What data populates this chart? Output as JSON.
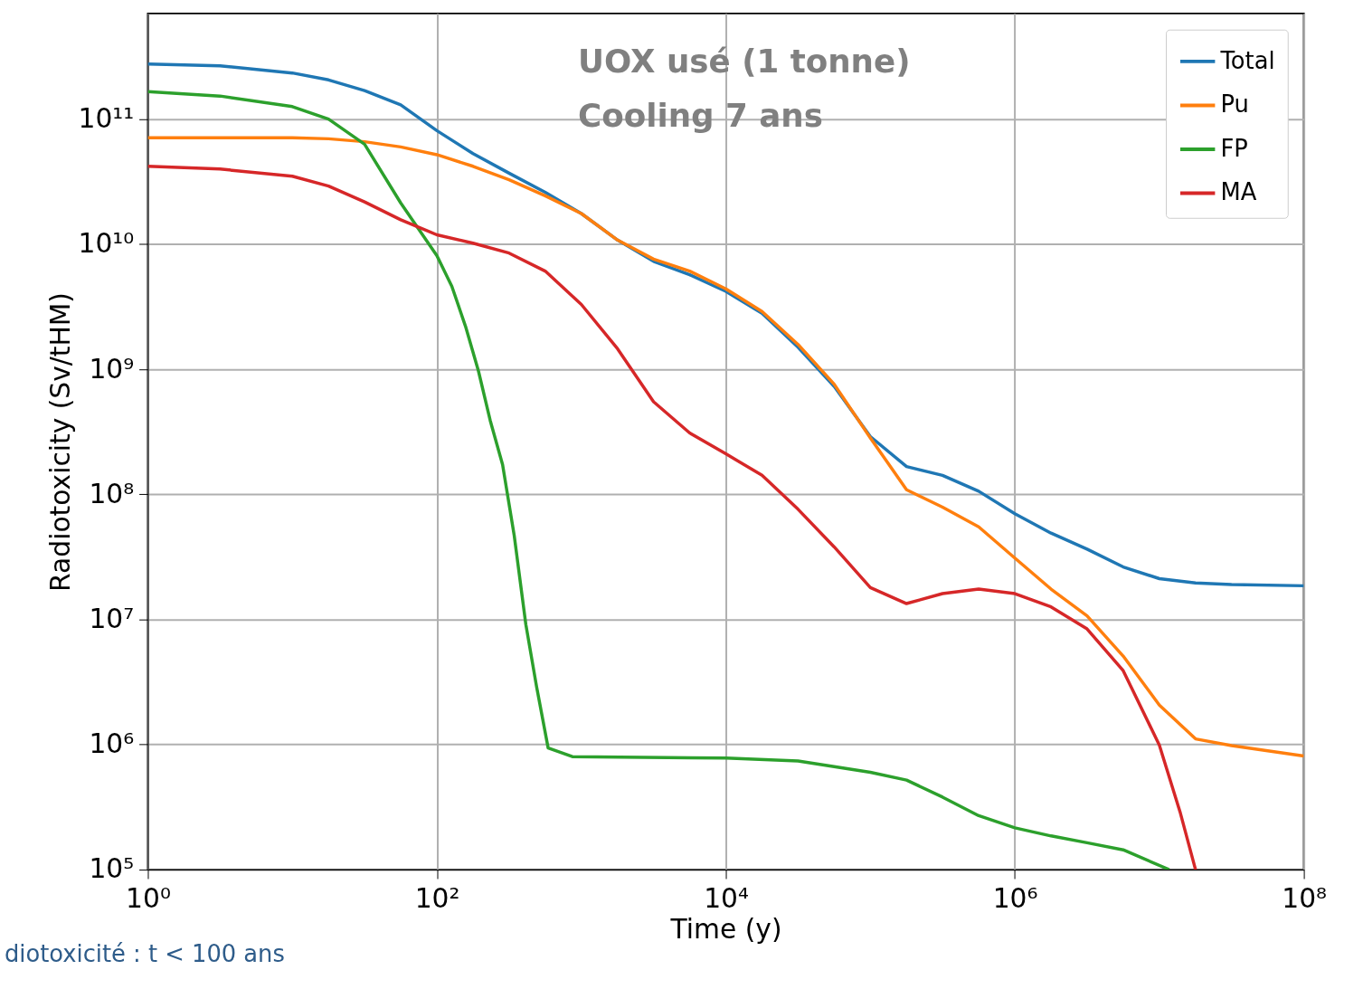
{
  "chart_data": {
    "type": "line",
    "xlabel": "Time (y)",
    "ylabel": "Radiotoxicity (Sv/tHM)",
    "annotations": [
      "UOX usé (1 tonne)",
      "Cooling 7 ans",
      "diotoxicité : t < 100 ans"
    ],
    "log": "xy",
    "grid": true,
    "legend": "top right",
    "xlim": [
      1,
      100000000
    ],
    "ylim": [
      100000,
      700000000000
    ],
    "xticks": [
      {
        "value": 1,
        "label": "10⁰"
      },
      {
        "value": 100,
        "label": "10²"
      },
      {
        "value": 10000,
        "label": "10⁴"
      },
      {
        "value": 1000000,
        "label": "10⁶"
      },
      {
        "value": 100000000,
        "label": "10⁸"
      }
    ],
    "yticks": [
      {
        "value": 100000,
        "label": "10⁵"
      },
      {
        "value": 1000000,
        "label": "10⁶"
      },
      {
        "value": 10000000,
        "label": "10⁷"
      },
      {
        "value": 100000000,
        "label": "10⁸"
      },
      {
        "value": 1000000000,
        "label": "10⁹"
      },
      {
        "value": 10000000000,
        "label": "10¹⁰"
      },
      {
        "value": 100000000000,
        "label": "10¹¹"
      }
    ],
    "series": [
      {
        "name": "Total",
        "color": "#1f77b4",
        "x": [
          1,
          3.16,
          10,
          17.8,
          31.6,
          56.2,
          100,
          178,
          316,
          562,
          1000,
          1780,
          3160,
          5620,
          10000,
          17800,
          31600,
          56200,
          100000,
          178000,
          316000,
          562000,
          1000000,
          1780000,
          3160000,
          5620000,
          10000000,
          17800000,
          31600000,
          100000000
        ],
        "values": [
          276000000000.0,
          267000000000.0,
          234000000000.0,
          206000000000.0,
          169000000000.0,
          130000000000.0,
          81000000000.0,
          53000000000.0,
          37000000000.0,
          26000000000.0,
          17600000000.0,
          10800000000.0,
          7300000000.0,
          5700000000.0,
          4200000000.0,
          2800000000.0,
          1500000000.0,
          730000000.0,
          290000000.0,
          167000000.0,
          142000000.0,
          106000000.0,
          70000000.0,
          49000000.0,
          36500000.0,
          26300000.0,
          21200000.0,
          19600000.0,
          19000000.0,
          18600000.0
        ]
      },
      {
        "name": "Pu",
        "color": "#ff7f0e",
        "x": [
          1,
          3.16,
          10,
          17.8,
          31.6,
          56.2,
          100,
          178,
          316,
          562,
          1000,
          1780,
          3160,
          5620,
          10000,
          17800,
          31600,
          56200,
          100000,
          178000,
          316000,
          562000,
          1000000,
          1780000,
          3160000,
          5620000,
          10000000,
          17800000,
          31600000,
          100000000
        ],
        "values": [
          71000000000.0,
          71000000000.0,
          71000000000.0,
          69700000000.0,
          66000000000.0,
          60000000000.0,
          52000000000.0,
          42000000000.0,
          32800000000.0,
          24400000000.0,
          17600000000.0,
          10800000000.0,
          7600000000.0,
          6100000000.0,
          4400000000.0,
          2900000000.0,
          1580000000.0,
          760000000.0,
          283000000.0,
          109000000.0,
          79000000.0,
          55000000.0,
          31000000.0,
          17500000.0,
          10700000.0,
          5100000.0,
          2070000.0,
          1110000.0,
          980000.0,
          810000.0
        ]
      },
      {
        "name": "FP",
        "color": "#2ca02c",
        "x": [
          1,
          3.16,
          10,
          17.8,
          31.6,
          56.2,
          100,
          127,
          158,
          194,
          234,
          285,
          343,
          413,
          490,
          589,
          866,
          10000,
          31600,
          100000,
          178000,
          316000,
          562000,
          1000000,
          1780000,
          3160000,
          5620000,
          11700000
        ],
        "values": [
          166000000000.0,
          153000000000.0,
          126000000000.0,
          100000000000.0,
          63000000000.0,
          21400000000.0,
          8100000000.0,
          4600000000.0,
          2200000000.0,
          970000000.0,
          390000000.0,
          173000000.0,
          47000000.0,
          9100000.0,
          2900000.0,
          940000.0,
          800000.0,
          780000.0,
          740000.0,
          600000.0,
          520000.0,
          380000.0,
          270000.0,
          216000.0,
          186000.0,
          164000.0,
          144000.0,
          100000.0
        ]
      },
      {
        "name": "MA",
        "color": "#d62728",
        "x": [
          1,
          3.16,
          10,
          17.8,
          31.6,
          56.2,
          100,
          178,
          316,
          562,
          1000,
          1780,
          3160,
          5620,
          10000,
          17800,
          31600,
          56200,
          100000,
          178000,
          316000,
          562000,
          1000000,
          1780000,
          3160000,
          5620000,
          10000000,
          13900000,
          17800000
        ],
        "values": [
          42000000000.0,
          39900000000.0,
          35000000000.0,
          29200000000.0,
          21800000000.0,
          15700000000.0,
          11900000000.0,
          10200000000.0,
          8500000000.0,
          6100000000.0,
          3300000000.0,
          1460000000.0,
          550000000.0,
          310000000.0,
          211000000.0,
          142000000.0,
          76000000.0,
          38000000.0,
          18000000.0,
          13400000.0,
          16100000.0,
          17500000.0,
          16100000.0,
          12600000.0,
          8400000.0,
          3900000.0,
          990000.0,
          290000.0,
          100000.0
        ]
      }
    ]
  }
}
